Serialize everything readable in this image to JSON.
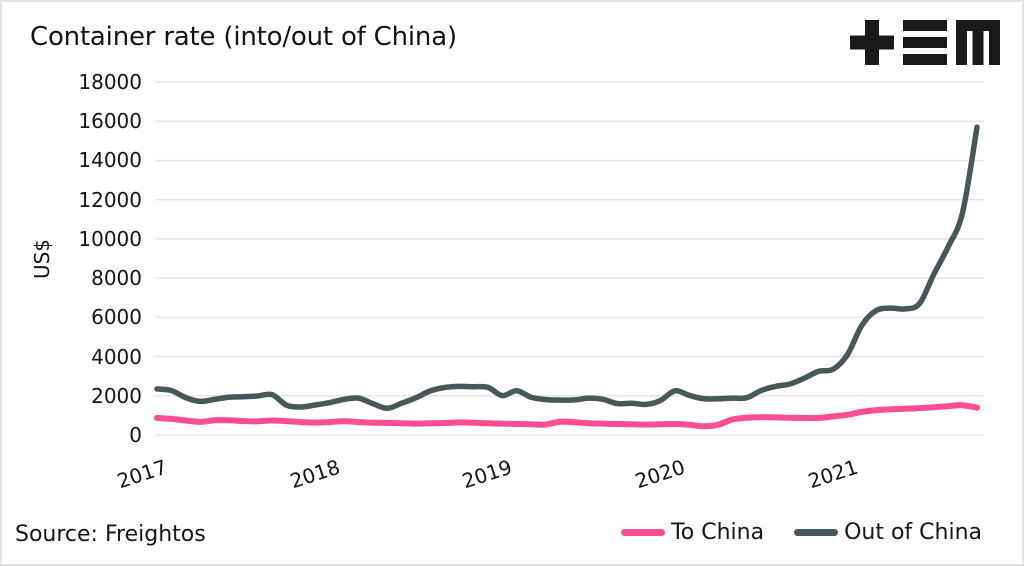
{
  "title": "Container rate (into/out of China)",
  "source": "Source: Freightos",
  "icons": {
    "logo": "plus-triple-bar-m-monogram"
  },
  "colors": {
    "to_china": "#FA4D92",
    "out_of_china": "#47585A",
    "gridline": "#e6e6e6",
    "text": "#161616",
    "background": "#ffffff"
  },
  "legend": [
    {
      "label": "To China",
      "color": "#FA4D92"
    },
    {
      "label": "Out of China",
      "color": "#47585A"
    }
  ],
  "chart_data": {
    "type": "line",
    "title": "Container rate (into/out of China)",
    "xlabel": "",
    "ylabel": "US$",
    "ylim": [
      0,
      18000
    ],
    "ytick_interval": 2000,
    "yticks": [
      0,
      2000,
      4000,
      6000,
      8000,
      10000,
      12000,
      14000,
      16000,
      18000
    ],
    "grid": "horizontal",
    "legend_position": "bottom-right",
    "x_frequency": "monthly",
    "x_start": "2017-01",
    "x_end": "2021-10",
    "xticks": [
      "2017",
      "2018",
      "2019",
      "2020",
      "2021"
    ],
    "xtick_month_indices": [
      0,
      12,
      24,
      36,
      48
    ],
    "series": [
      {
        "name": "To China",
        "color": "#FA4D92",
        "values": [
          870,
          820,
          740,
          670,
          750,
          750,
          710,
          700,
          740,
          710,
          660,
          630,
          660,
          700,
          660,
          630,
          615,
          600,
          580,
          595,
          610,
          640,
          625,
          600,
          580,
          560,
          550,
          530,
          680,
          650,
          600,
          580,
          560,
          545,
          530,
          545,
          560,
          520,
          450,
          520,
          790,
          880,
          910,
          895,
          880,
          870,
          870,
          950,
          1030,
          1180,
          1270,
          1310,
          1340,
          1370,
          1420,
          1470,
          1520,
          1390
        ]
      },
      {
        "name": "Out of China",
        "color": "#47585A",
        "values": [
          2350,
          2270,
          1900,
          1715,
          1815,
          1930,
          1950,
          1990,
          2060,
          1520,
          1430,
          1530,
          1650,
          1815,
          1880,
          1600,
          1360,
          1620,
          1900,
          2250,
          2420,
          2480,
          2460,
          2430,
          2010,
          2260,
          1930,
          1810,
          1780,
          1790,
          1880,
          1820,
          1600,
          1620,
          1560,
          1760,
          2250,
          2020,
          1850,
          1850,
          1880,
          1900,
          2270,
          2480,
          2600,
          2900,
          3250,
          3350,
          4100,
          5600,
          6350,
          6470,
          6430,
          6700,
          8200,
          9600,
          11350,
          15700
        ]
      }
    ],
    "source": "Source: Freightos"
  }
}
